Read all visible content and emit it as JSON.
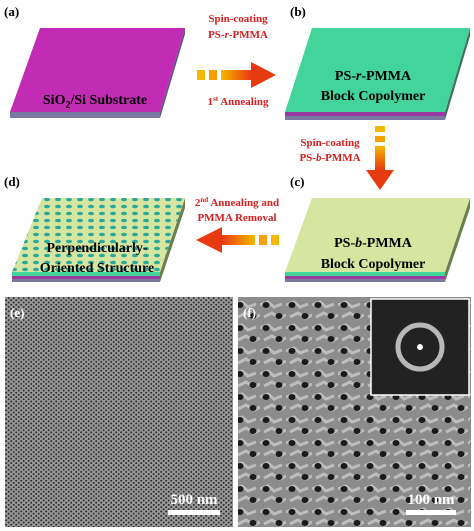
{
  "labels": [
    "(a)",
    "(b)",
    "(c)",
    "(d)",
    "(e)",
    "(f)"
  ],
  "step1": {
    "line1": "Spin-coating",
    "line2": [
      "PS-",
      "r",
      "-PMMA"
    ],
    "line3": [
      "1",
      "st",
      " Annealing"
    ]
  },
  "plate_a": [
    "SiO",
    "2",
    "/Si Substrate"
  ],
  "plate_b": {
    "line1": [
      "PS-",
      "r",
      "-PMMA"
    ],
    "line2": "Block Copolymer"
  },
  "step2": {
    "line1": "Spin-coating",
    "line2": [
      "PS-",
      "b",
      "-PMMA"
    ]
  },
  "plate_c": {
    "line1": [
      "PS-",
      "b",
      "-PMMA"
    ],
    "line2": "Block Copolymer"
  },
  "step3": {
    "line1": [
      "2",
      "nd",
      " Annealing and"
    ],
    "line2": "PMMA Removal"
  },
  "plate_d": {
    "line1": "Perpendicularly-",
    "line2": "Oriented Structure"
  },
  "scale_e": "500 nm",
  "scale_f": "100 nm"
}
